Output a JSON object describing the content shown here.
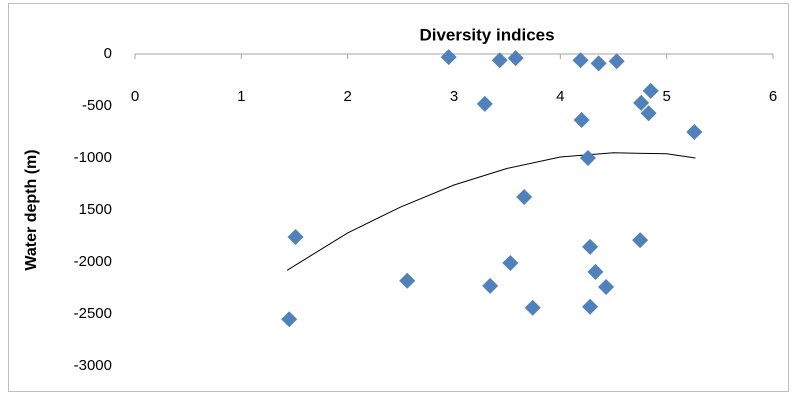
{
  "chart_data": {
    "type": "scatter",
    "title": "Diversity indices",
    "y_label": "Water depth (m)",
    "xlim": [
      0,
      6
    ],
    "xticks": [
      0,
      1,
      2,
      3,
      4,
      5,
      6
    ],
    "ylim": [
      -3000,
      0
    ],
    "yticks": [
      0,
      -500,
      -1000,
      {
        "value": -1500,
        "label": "1500"
      },
      -2000,
      -2500,
      -3000
    ],
    "grid": false,
    "series": [
      {
        "color": "#4f81bd",
        "x": [
          2.95,
          3.43,
          3.58,
          4.19,
          4.36,
          4.53,
          4.85,
          3.29,
          4.76,
          4.83,
          4.2,
          5.26,
          4.26,
          3.66,
          1.51,
          4.75,
          4.28,
          3.53,
          4.33,
          4.43,
          2.56,
          3.34,
          3.74,
          4.28,
          1.45
        ],
        "values": [
          -30,
          -60,
          -40,
          -60,
          -90,
          -70,
          -355,
          -480,
          -470,
          -570,
          -635,
          -750,
          -1000,
          -1375,
          -1760,
          -1790,
          -1855,
          -2010,
          -2095,
          -2240,
          -2180,
          -2230,
          -2440,
          -2430,
          -2550
        ]
      }
    ],
    "trendline": {
      "color": "#000000",
      "x": [
        1.43,
        2,
        2.5,
        3,
        3.5,
        4,
        4.5,
        5,
        5.27
      ],
      "values": [
        -2080,
        -1720,
        -1470,
        -1260,
        -1100,
        -990,
        -950,
        -960,
        -1000
      ]
    }
  }
}
